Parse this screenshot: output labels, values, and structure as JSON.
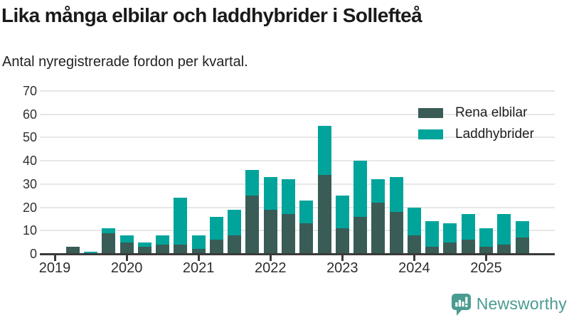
{
  "header": {
    "title": "Lika många elbilar och laddhybrider i Sollefteå",
    "subtitle": "Antal nyregistrerade fordon per kvartal."
  },
  "chart_data": {
    "type": "bar",
    "stacked": true,
    "x": [
      "2019Q1",
      "2019Q2",
      "2019Q3",
      "2019Q4",
      "2020Q1",
      "2020Q2",
      "2020Q3",
      "2020Q4",
      "2021Q1",
      "2021Q2",
      "2021Q3",
      "2021Q4",
      "2022Q1",
      "2022Q2",
      "2022Q3",
      "2022Q4",
      "2023Q1",
      "2023Q2",
      "2023Q3",
      "2023Q4",
      "2024Q1",
      "2024Q2",
      "2024Q3",
      "2024Q4",
      "2025Q1",
      "2025Q2",
      "2025Q3"
    ],
    "series": [
      {
        "name": "Rena elbilar",
        "color": "#395c56",
        "values": [
          0,
          3,
          0,
          9,
          5,
          3,
          4,
          4,
          2,
          6,
          8,
          25,
          19,
          17,
          13,
          34,
          11,
          16,
          22,
          18,
          8,
          3,
          5,
          6,
          3,
          4,
          7
        ]
      },
      {
        "name": "Laddhybrider",
        "color": "#00a49b",
        "values": [
          0,
          0,
          1,
          2,
          3,
          2,
          4,
          20,
          6,
          10,
          11,
          11,
          14,
          15,
          10,
          21,
          14,
          24,
          10,
          15,
          12,
          11,
          8,
          11,
          8,
          13,
          7
        ]
      }
    ],
    "title": "Lika många elbilar och laddhybrider i Sollefteå",
    "subtitle": "Antal nyregistrerade fordon per kvartal.",
    "xlabel": "",
    "ylabel": "",
    "ylim": [
      0,
      70
    ],
    "y_ticks": [
      0,
      10,
      20,
      30,
      40,
      50,
      60,
      70
    ],
    "x_tick_labels": [
      "2019",
      "2020",
      "2021",
      "2022",
      "2023",
      "2024",
      "2025"
    ],
    "grid": "horizontal",
    "legend_position": "top-right"
  },
  "footer": {
    "brand": "Newsworthy",
    "logo_icon": "newsworthy-speech-bubble-bar-chart-icon"
  },
  "colors": {
    "series_dark": "#395c56",
    "series_teal": "#00a49b",
    "axis": "#3a3a3a",
    "gridline": "#e7e7e7",
    "brand": "#4a9b91",
    "text": "#1a1a1a"
  }
}
